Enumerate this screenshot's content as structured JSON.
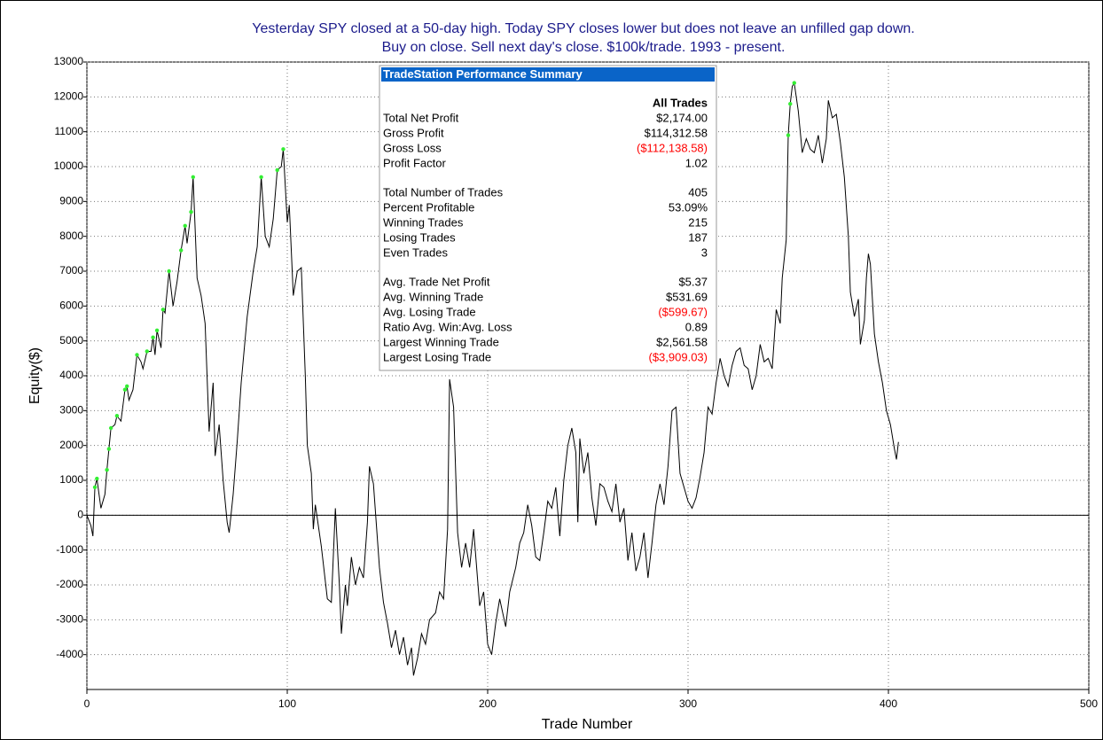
{
  "chart_data": {
    "type": "line",
    "title": [
      "Yesterday SPY closed at a 50-day high. Today SPY closes lower but does not leave an unfilled gap down.",
      "Buy on close. Sell next day's close. $100k/trade. 1993 - present."
    ],
    "x_label": "Trade Number",
    "y_label": "Equity($)",
    "xlim": [
      0,
      500
    ],
    "xticks": [
      0,
      100,
      200,
      300,
      400,
      500
    ],
    "ylim": [
      -5000,
      13000
    ],
    "yticks": [
      -4000,
      -3000,
      -2000,
      -1000,
      0,
      1000,
      2000,
      3000,
      4000,
      5000,
      6000,
      7000,
      8000,
      9000,
      10000,
      11000,
      12000,
      13000
    ],
    "grid": true,
    "series": [
      {
        "color": "#000000",
        "x": [
          0,
          2,
          3,
          4,
          5,
          7,
          9,
          10,
          11,
          12,
          14,
          15,
          17,
          19,
          20,
          21,
          23,
          25,
          27,
          28,
          30,
          32,
          33,
          34,
          35,
          37,
          38,
          39,
          41,
          43,
          45,
          47,
          49,
          50,
          52,
          53,
          55,
          57,
          59,
          61,
          63,
          64,
          66,
          68,
          70,
          71,
          73,
          75,
          77,
          80,
          83,
          85,
          87,
          89,
          91,
          93,
          95,
          97,
          98,
          100,
          101,
          103,
          105,
          107,
          109,
          110,
          112,
          113,
          114,
          117,
          120,
          122,
          124,
          126,
          127,
          129,
          130,
          132,
          134,
          136,
          138,
          140,
          141,
          143,
          146,
          148,
          150,
          152,
          154,
          156,
          158,
          160,
          162,
          163,
          165,
          167,
          169,
          171,
          174,
          176,
          178,
          180,
          181,
          183,
          185,
          187,
          189,
          191,
          193,
          196,
          198,
          200,
          202,
          204,
          206,
          209,
          211,
          214,
          216,
          218,
          220,
          222,
          224,
          226,
          228,
          230,
          232,
          234,
          236,
          238,
          240,
          242,
          244,
          245,
          246,
          248,
          250,
          252,
          254,
          256,
          258,
          260,
          262,
          264,
          266,
          268,
          270,
          272,
          274,
          276,
          278,
          280,
          282,
          284,
          286,
          288,
          290,
          292,
          294,
          296,
          298,
          300,
          302,
          304,
          306,
          308,
          310,
          312,
          314,
          316,
          318,
          320,
          322,
          324,
          326,
          328,
          330,
          332,
          334,
          336,
          338,
          340,
          342,
          344,
          346,
          347,
          349,
          350,
          351,
          352,
          353,
          355,
          357,
          359,
          361,
          363,
          365,
          367,
          369,
          370,
          372,
          374,
          376,
          378,
          380,
          381,
          383,
          385,
          386,
          388,
          389,
          390,
          391,
          393,
          395,
          397,
          399,
          401,
          403,
          404,
          405
        ],
        "values": [
          0,
          -300,
          -600,
          800,
          1050,
          200,
          600,
          1300,
          1900,
          2500,
          2600,
          2850,
          2700,
          3600,
          3700,
          3300,
          3600,
          4600,
          4400,
          4200,
          4700,
          4700,
          5100,
          4600,
          5300,
          4800,
          5900,
          5800,
          7000,
          6000,
          6700,
          7600,
          8300,
          7800,
          8700,
          9700,
          6800,
          6300,
          5500,
          2400,
          3800,
          1700,
          2600,
          1000,
          -200,
          -500,
          600,
          2100,
          3800,
          5700,
          7000,
          7700,
          9700,
          8000,
          7700,
          8500,
          9900,
          10000,
          10500,
          8400,
          8900,
          6300,
          7000,
          7100,
          4000,
          2000,
          1200,
          -400,
          300,
          -900,
          -2400,
          -2500,
          200,
          -2000,
          -3400,
          -2000,
          -2600,
          -1200,
          -2000,
          -1500,
          -1800,
          -200,
          1400,
          900,
          -1500,
          -2500,
          -3100,
          -3800,
          -3300,
          -4000,
          -3500,
          -4300,
          -3800,
          -4600,
          -4100,
          -3400,
          -3700,
          -3000,
          -2800,
          -2200,
          -2400,
          -400,
          3900,
          3100,
          -500,
          -1500,
          -800,
          -1500,
          -400,
          -2600,
          -2200,
          -3700,
          -4000,
          -3100,
          -2400,
          -3200,
          -2200,
          -1500,
          -800,
          -500,
          300,
          -300,
          -1200,
          -1300,
          -500,
          400,
          200,
          800,
          -600,
          1000,
          2000,
          2500,
          1800,
          -200,
          2200,
          1200,
          1800,
          500,
          -300,
          900,
          800,
          400,
          100,
          900,
          -200,
          200,
          -1300,
          -500,
          -1600,
          -1200,
          -500,
          -1800,
          -800,
          300,
          900,
          300,
          1400,
          3000,
          3100,
          1200,
          800,
          400,
          200,
          500,
          1100,
          1800,
          3100,
          2900,
          3800,
          4500,
          4000,
          3700,
          4300,
          4700,
          4800,
          4300,
          4200,
          3600,
          4000,
          4900,
          4400,
          4500,
          4200,
          5900,
          5500,
          6800,
          7900,
          10900,
          11800,
          12300,
          12400,
          11600,
          10400,
          10800,
          10500,
          10400,
          10900,
          10100,
          10800,
          11900,
          11400,
          11500,
          10700,
          9700,
          8000,
          6400,
          5700,
          6200,
          4900,
          5600,
          6800,
          7500,
          7200,
          5200,
          4400,
          3800,
          3000,
          2600,
          1900,
          1600,
          2100
        ]
      }
    ],
    "markers": {
      "color": "#33ee33",
      "x": [
        4,
        5,
        10,
        11,
        12,
        15,
        19,
        20,
        25,
        30,
        33,
        35,
        38,
        41,
        47,
        49,
        52,
        53,
        87,
        95,
        98,
        350,
        351,
        353
      ],
      "values": [
        800,
        1050,
        1300,
        1900,
        2500,
        2850,
        3600,
        3700,
        4600,
        4700,
        5100,
        5300,
        5900,
        7000,
        7600,
        8300,
        8700,
        9700,
        9700,
        9900,
        10500,
        10900,
        11800,
        12400
      ]
    },
    "summary": {
      "title": "TradeStation Performance Summary",
      "header": "All Trades",
      "title_color": "#0a64c8",
      "negative_color": "#ff0000",
      "groups": [
        [
          [
            "Total Net Profit",
            "$2,174.00"
          ],
          [
            "Gross Profit",
            "$114,312.58"
          ],
          [
            "Gross Loss",
            "($112,138.58)"
          ],
          [
            "Profit Factor",
            "1.02"
          ]
        ],
        [
          [
            "Total Number of Trades",
            "405"
          ],
          [
            "Percent Profitable",
            "53.09%"
          ],
          [
            "Winning Trades",
            "215"
          ],
          [
            "Losing Trades",
            "187"
          ],
          [
            "Even Trades",
            "3"
          ]
        ],
        [
          [
            "Avg. Trade Net Profit",
            "$5.37"
          ],
          [
            "Avg. Winning Trade",
            "$531.69"
          ],
          [
            "Avg. Losing Trade",
            "($599.67)"
          ],
          [
            "Ratio Avg. Win:Avg. Loss",
            "0.89"
          ],
          [
            "Largest Winning Trade",
            "$2,561.58"
          ],
          [
            "Largest Losing Trade",
            "($3,909.03)"
          ]
        ]
      ]
    }
  }
}
